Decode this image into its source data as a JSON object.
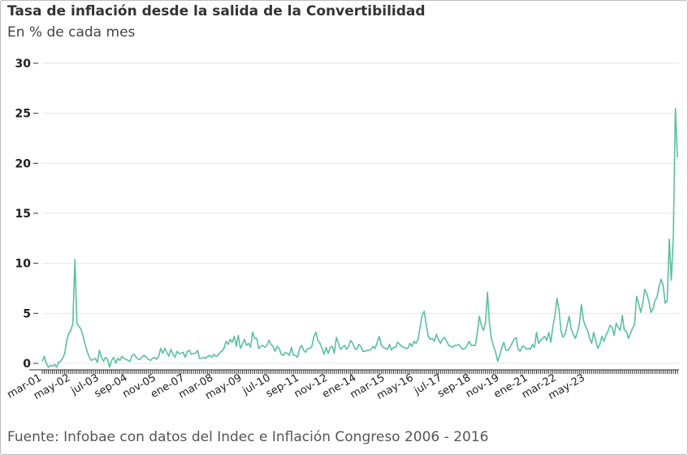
{
  "header": {
    "title": "Tasa de inflación desde la salida de la Convertibilidad",
    "subtitle": "En % de cada mes"
  },
  "footer": {
    "source": "Fuente: Infobae con datos del Indec e Inflación Congreso 2006 - 2016"
  },
  "colors": {
    "line": "#5bbf9e",
    "grid": "#e6e6e6",
    "axis": "#333333",
    "text": "#222222"
  },
  "chart_data": {
    "type": "line",
    "title": "Tasa de inflación desde la salida de la Convertibilidad",
    "subtitle": "En % de cada mes",
    "xlabel": "",
    "ylabel": "",
    "ylim": [
      -1,
      30
    ],
    "yticks": [
      0,
      5,
      10,
      15,
      20,
      25,
      30
    ],
    "grid": true,
    "legend": "none",
    "start_month": "mar-01",
    "x_tick_labels": [
      "mar-01",
      "may-02",
      "jul-03",
      "sep-04",
      "nov-05",
      "ene-07",
      "mar-08",
      "may-09",
      "jul-10",
      "sep-11",
      "nov-12",
      "ene-14",
      "mar-15",
      "may-16",
      "jul-17",
      "sep-18",
      "nov-19",
      "ene-21",
      "mar-22",
      "may-23"
    ],
    "series": [
      {
        "values": [
          0.2,
          0.7,
          0.0,
          -0.4,
          -0.2,
          -0.3,
          -0.1,
          -0.4,
          0.1,
          0.2,
          0.5,
          1.0,
          2.3,
          3.0,
          3.3,
          4.0,
          10.4,
          4.0,
          3.7,
          3.4,
          2.7,
          1.9,
          1.2,
          0.6,
          0.3,
          0.4,
          0.5,
          0.1,
          1.3,
          0.6,
          0.2,
          0.6,
          0.4,
          -0.4,
          0.3,
          0.6,
          0.0,
          0.5,
          0.3,
          0.7,
          0.5,
          0.4,
          0.3,
          0.2,
          0.8,
          0.9,
          0.6,
          0.4,
          0.4,
          0.7,
          0.8,
          0.6,
          0.4,
          0.3,
          0.5,
          0.6,
          0.4,
          0.7,
          1.5,
          1.0,
          1.5,
          1.1,
          0.7,
          1.4,
          0.9,
          0.6,
          1.2,
          1.0,
          1.0,
          1.1,
          0.6,
          1.2,
          1.3,
          0.9,
          1.0,
          1.0,
          1.3,
          0.5,
          0.5,
          0.6,
          0.5,
          0.7,
          0.8,
          0.6,
          0.9,
          0.7,
          0.8,
          1.1,
          1.2,
          1.5,
          2.2,
          1.9,
          2.4,
          2.1,
          2.7,
          1.7,
          2.8,
          1.5,
          1.9,
          2.4,
          1.8,
          2.0,
          1.6,
          3.1,
          2.5,
          2.5,
          1.5,
          1.7,
          1.8,
          1.6,
          1.8,
          2.3,
          1.9,
          1.7,
          1.2,
          1.7,
          1.5,
          0.9,
          0.8,
          1.1,
          1.0,
          0.8,
          1.6,
          0.8,
          0.8,
          0.6,
          1.5,
          1.8,
          1.3,
          1.1,
          1.5,
          1.5,
          1.7,
          2.7,
          3.1,
          2.3,
          2.0,
          1.5,
          0.9,
          1.6,
          1.0,
          1.6,
          1.7,
          1.0,
          2.6,
          2.0,
          1.4,
          1.6,
          1.8,
          1.4,
          1.7,
          2.3,
          2.0,
          1.5,
          1.4,
          1.9,
          1.7,
          1.2,
          1.2,
          1.3,
          1.3,
          1.4,
          1.7,
          1.5,
          2.1,
          2.7,
          1.8,
          1.6,
          1.5,
          1.4,
          1.9,
          1.3,
          1.6,
          1.6,
          2.1,
          1.9,
          1.7,
          1.6,
          1.5,
          1.5,
          2.0,
          1.7,
          2.2,
          2.0,
          2.4,
          3.6,
          4.8,
          5.2,
          3.9,
          2.7,
          2.4,
          2.5,
          2.2,
          2.9,
          2.4,
          2.0,
          2.4,
          2.6,
          2.2,
          1.8,
          1.7,
          1.6,
          1.8,
          1.8,
          1.9,
          1.6,
          1.4,
          1.5,
          1.8,
          2.2,
          1.8,
          1.8,
          1.8,
          3.0,
          4.7,
          3.8,
          3.3,
          4.0,
          7.1,
          3.9,
          2.4,
          1.7,
          1.1,
          0.2,
          0.8,
          1.6,
          2.1,
          1.3,
          1.3,
          1.6,
          2.0,
          2.4,
          2.6,
          1.4,
          1.2,
          1.7,
          1.7,
          1.4,
          1.5,
          1.4,
          1.9,
          1.6,
          3.1,
          2.0,
          2.3,
          2.5,
          2.7,
          2.3,
          3.1,
          2.1,
          3.7,
          4.7,
          6.5,
          5.4,
          3.2,
          2.6,
          2.9,
          3.8,
          4.7,
          3.4,
          2.9,
          2.5,
          3.1,
          4.0,
          5.9,
          4.3,
          3.7,
          3.3,
          2.5,
          2.0,
          3.1,
          2.3,
          1.5,
          1.9,
          2.7,
          2.2,
          2.8,
          3.2,
          3.8,
          3.6,
          2.8,
          4.0,
          3.6,
          3.3,
          4.8,
          3.3,
          3.2,
          2.5,
          3.0,
          3.5,
          3.9,
          6.7,
          6.0,
          5.1,
          6.0,
          7.4,
          7.0,
          6.2,
          5.1,
          5.4,
          6.3,
          6.6,
          7.7,
          8.4,
          7.8,
          6.0,
          6.3,
          12.4,
          8.3,
          12.8,
          25.5,
          20.6
        ]
      }
    ]
  }
}
